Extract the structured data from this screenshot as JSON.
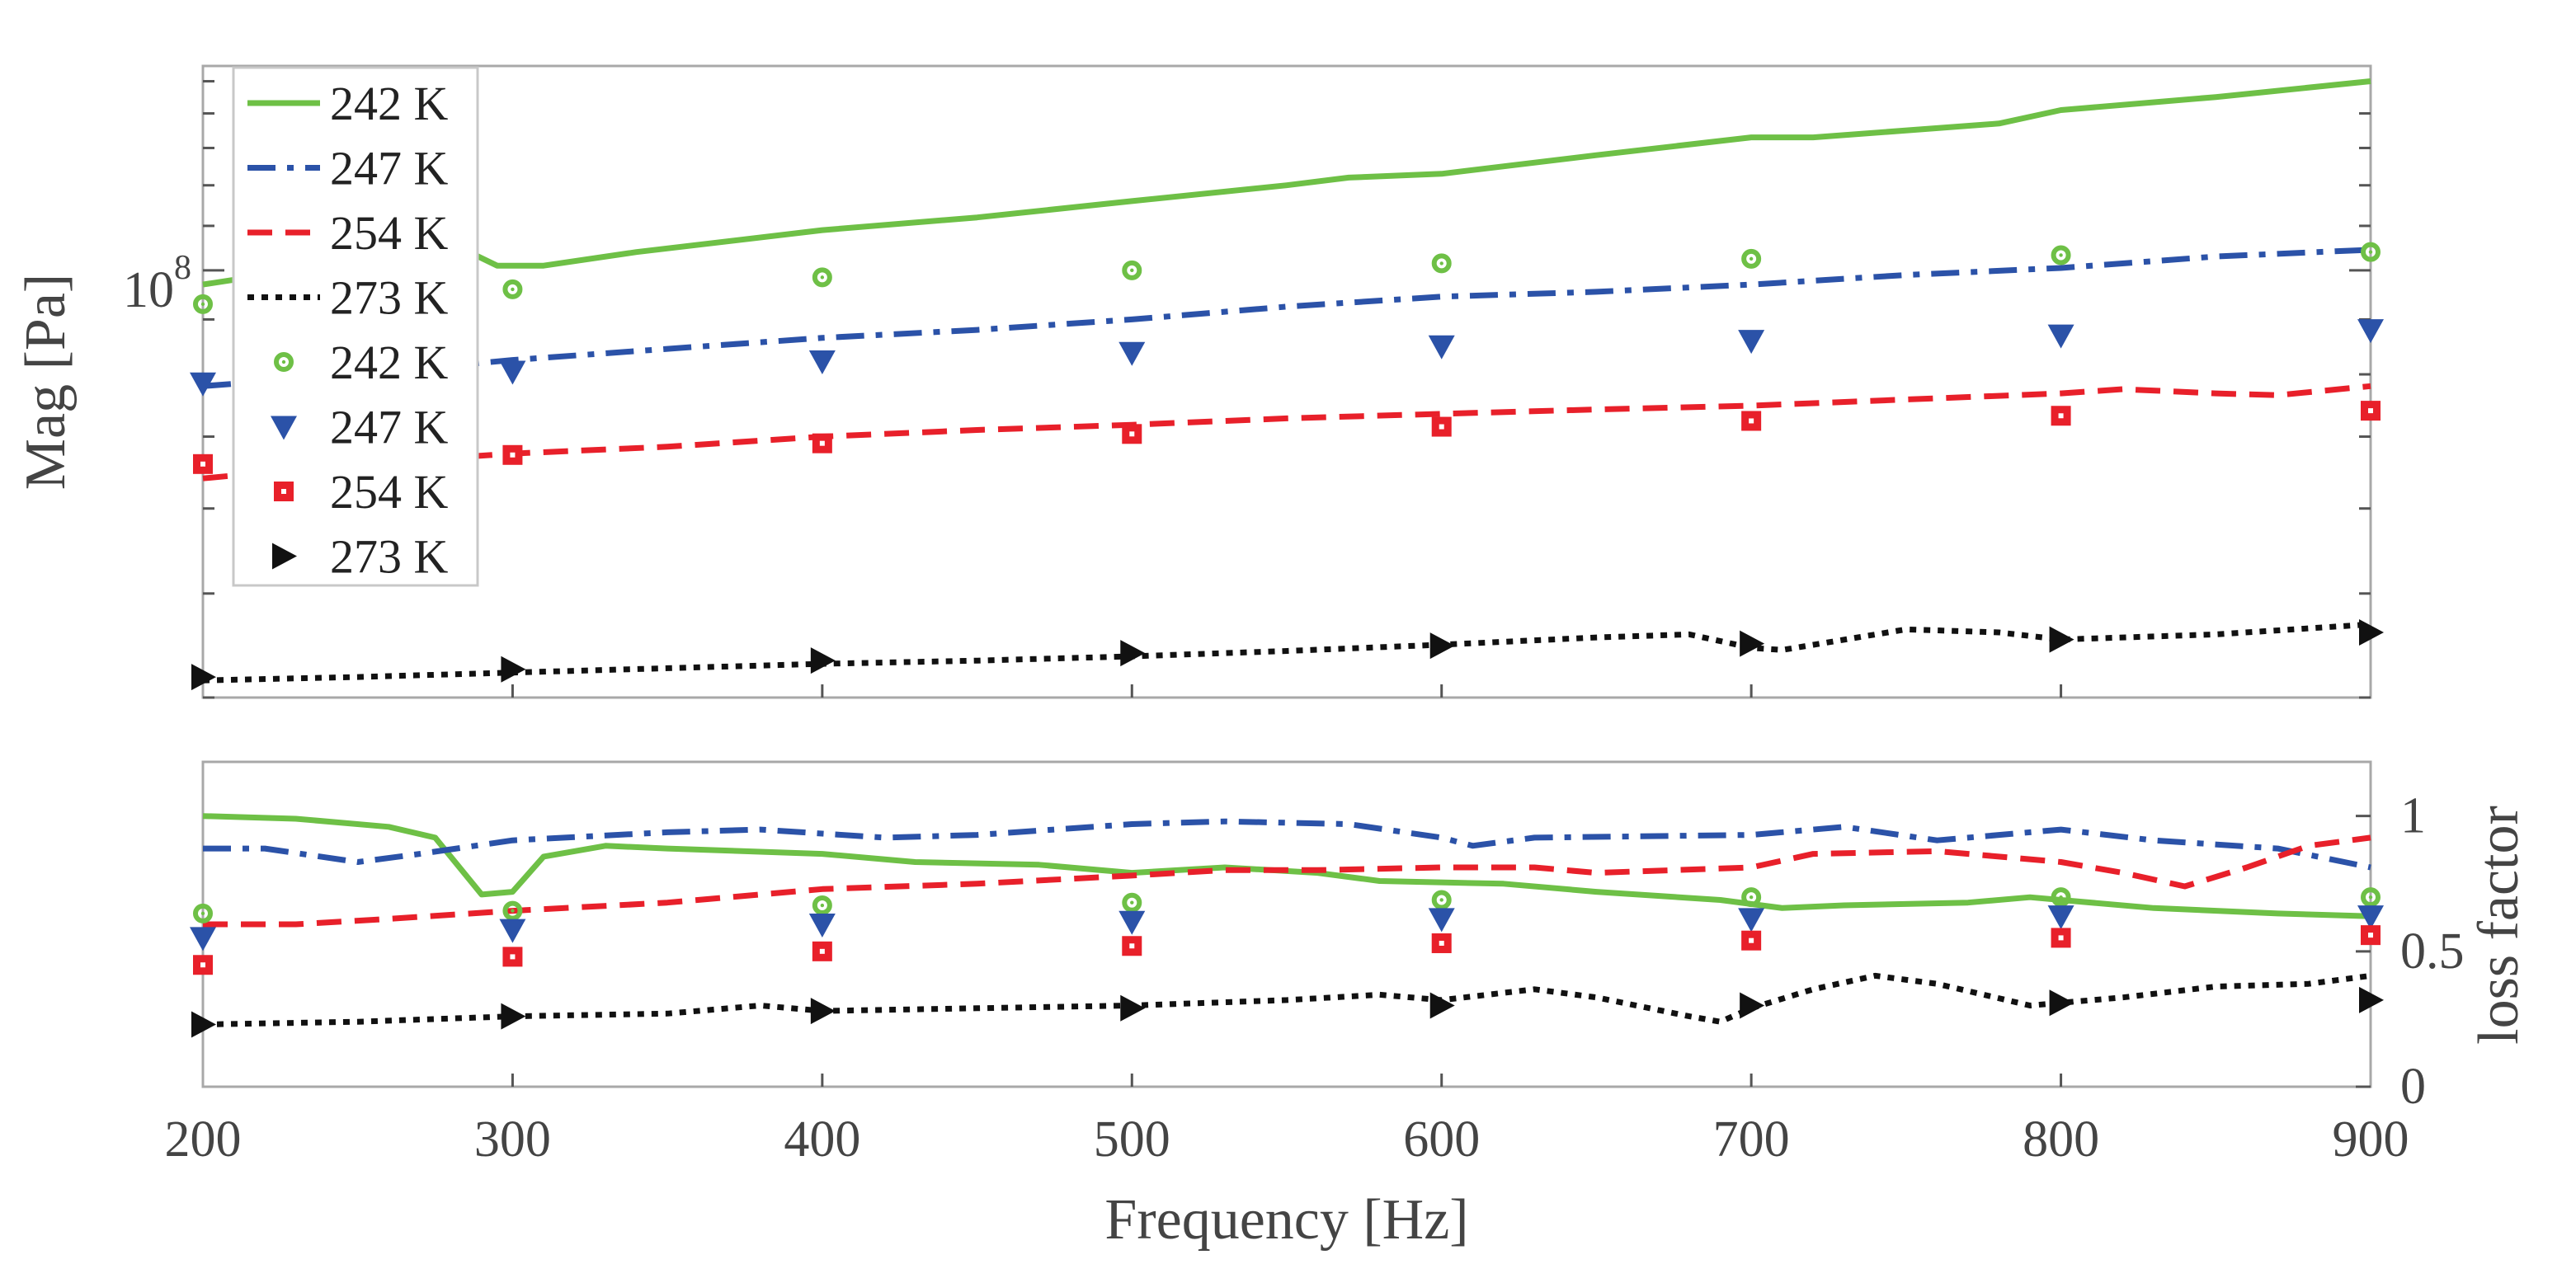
{
  "chart_data": [
    {
      "type": "line",
      "panel": "magnitude",
      "ylabel": "Mag [Pa]",
      "xlabel": "",
      "yscale": "log",
      "ylim": [
        40000000,
        155000000
      ],
      "xlim": [
        200,
        900
      ],
      "ytick_labels": [
        "10",
        "8"
      ],
      "ytick_value": 100000000,
      "grid": false,
      "legend_position": "top-left",
      "legend": [
        {
          "label": "242 K",
          "kind": "line",
          "style": "solid",
          "color": "#6ec046"
        },
        {
          "label": "247 K",
          "kind": "line",
          "style": "dashdot",
          "color": "#2b52a8"
        },
        {
          "label": "254 K",
          "kind": "line",
          "style": "dashed",
          "color": "#e8202a"
        },
        {
          "label": "273 K",
          "kind": "line",
          "style": "dotted",
          "color": "#111111"
        },
        {
          "label": "242 K",
          "kind": "marker",
          "marker": "circle",
          "color": "#6ec046"
        },
        {
          "label": "247 K",
          "kind": "marker",
          "marker": "triangle-down",
          "color": "#2b52a8"
        },
        {
          "label": "254 K",
          "kind": "marker",
          "marker": "square",
          "color": "#e8202a"
        },
        {
          "label": "273 K",
          "kind": "marker",
          "marker": "triangle-right",
          "color": "#111111"
        }
      ],
      "series": [
        {
          "name": "242 K",
          "kind": "line",
          "style": "solid",
          "color": "#6ec046",
          "x": [
            200,
            230,
            260,
            280,
            295,
            310,
            340,
            400,
            450,
            500,
            550,
            570,
            600,
            650,
            700,
            720,
            780,
            800,
            850,
            900
          ],
          "values": [
            97000000,
            100000000,
            104000000,
            106000000,
            101000000,
            101000000,
            104000000,
            109000000,
            112000000,
            116000000,
            120000000,
            122000000,
            123000000,
            128000000,
            133000000,
            133000000,
            137000000,
            141000000,
            145000000,
            150000000
          ]
        },
        {
          "name": "247 K",
          "kind": "line",
          "style": "dashdot",
          "color": "#2b52a8",
          "x": [
            200,
            250,
            300,
            350,
            400,
            450,
            500,
            550,
            600,
            650,
            700,
            750,
            800,
            850,
            900
          ],
          "values": [
            78000000,
            80000000,
            82500000,
            84500000,
            86500000,
            88000000,
            90000000,
            92500000,
            94500000,
            95500000,
            97000000,
            99000000,
            100500000,
            103000000,
            104500000
          ]
        },
        {
          "name": "254 K",
          "kind": "line",
          "style": "dashed",
          "color": "#e8202a",
          "x": [
            200,
            250,
            300,
            350,
            400,
            450,
            500,
            550,
            600,
            650,
            700,
            750,
            800,
            820,
            850,
            870,
            900
          ],
          "values": [
            64000000,
            66000000,
            67500000,
            68500000,
            70000000,
            71000000,
            71800000,
            72800000,
            73500000,
            74200000,
            74800000,
            75800000,
            76800000,
            77500000,
            76800000,
            76500000,
            78000000
          ]
        },
        {
          "name": "273 K",
          "kind": "line",
          "style": "dotted",
          "color": "#111111",
          "x": [
            200,
            250,
            300,
            350,
            400,
            450,
            500,
            550,
            600,
            650,
            680,
            700,
            710,
            750,
            780,
            800,
            850,
            900
          ],
          "values": [
            41500000,
            41800000,
            42200000,
            42600000,
            43000000,
            43300000,
            43700000,
            44200000,
            44800000,
            45500000,
            45800000,
            44500000,
            44300000,
            46300000,
            46000000,
            45300000,
            45800000,
            46800000
          ]
        },
        {
          "name": "242 K",
          "kind": "marker",
          "marker": "circle",
          "color": "#6ec046",
          "x": [
            200,
            300,
            400,
            500,
            600,
            700,
            800,
            900
          ],
          "values": [
            93000000,
            96000000,
            98500000,
            100000000,
            101500000,
            102500000,
            103300000,
            104000000
          ]
        },
        {
          "name": "247 K",
          "kind": "marker",
          "marker": "triangle-down",
          "color": "#2b52a8",
          "x": [
            200,
            300,
            400,
            500,
            600,
            700,
            800,
            900
          ],
          "values": [
            78500000,
            80500000,
            82300000,
            83800000,
            85000000,
            86000000,
            87000000,
            88000000
          ]
        },
        {
          "name": "254 K",
          "kind": "marker",
          "marker": "square",
          "color": "#e8202a",
          "x": [
            200,
            300,
            400,
            500,
            600,
            700,
            800,
            900
          ],
          "values": [
            66000000,
            67300000,
            69000000,
            70400000,
            71500000,
            72400000,
            73200000,
            74000000
          ]
        },
        {
          "name": "273 K",
          "kind": "marker",
          "marker": "triangle-right",
          "color": "#111111",
          "x": [
            200,
            300,
            400,
            500,
            600,
            700,
            800,
            900
          ],
          "values": [
            41800000,
            42500000,
            43300000,
            44000000,
            44700000,
            44900000,
            45300000,
            46000000
          ]
        }
      ]
    },
    {
      "type": "line",
      "panel": "loss-factor",
      "ylabel": "loss factor",
      "xlabel": "Frequency [Hz]",
      "yaxis_side": "right",
      "ylim": [
        0,
        1.2
      ],
      "xlim": [
        200,
        900
      ],
      "xticks": [
        200,
        300,
        400,
        500,
        600,
        700,
        800,
        900
      ],
      "xtick_labels": [
        "200",
        "300",
        "400",
        "500",
        "600",
        "700",
        "800",
        "900"
      ],
      "yticks": [
        0,
        0.5,
        1
      ],
      "ytick_labels": [
        "0",
        "0.5",
        "1"
      ],
      "grid": false,
      "series": [
        {
          "name": "242 K",
          "kind": "line",
          "style": "solid",
          "color": "#6ec046",
          "x": [
            200,
            230,
            260,
            275,
            290,
            300,
            310,
            330,
            350,
            400,
            430,
            470,
            500,
            530,
            560,
            580,
            620,
            650,
            690,
            710,
            730,
            770,
            790,
            800,
            830,
            870,
            900
          ],
          "values": [
            1.0,
            0.99,
            0.96,
            0.92,
            0.71,
            0.72,
            0.85,
            0.89,
            0.88,
            0.86,
            0.83,
            0.82,
            0.79,
            0.81,
            0.79,
            0.76,
            0.75,
            0.72,
            0.69,
            0.66,
            0.67,
            0.68,
            0.7,
            0.69,
            0.66,
            0.64,
            0.63
          ]
        },
        {
          "name": "247 K",
          "kind": "line",
          "style": "dashdot",
          "color": "#2b52a8",
          "x": [
            200,
            220,
            250,
            270,
            300,
            350,
            380,
            420,
            450,
            500,
            530,
            570,
            600,
            610,
            630,
            700,
            730,
            760,
            800,
            830,
            870,
            900
          ],
          "values": [
            0.88,
            0.88,
            0.83,
            0.86,
            0.91,
            0.94,
            0.95,
            0.92,
            0.93,
            0.97,
            0.98,
            0.97,
            0.92,
            0.89,
            0.92,
            0.93,
            0.96,
            0.91,
            0.95,
            0.91,
            0.88,
            0.81
          ]
        },
        {
          "name": "254 K",
          "kind": "line",
          "style": "dashed",
          "color": "#e8202a",
          "x": [
            200,
            230,
            260,
            300,
            350,
            400,
            450,
            500,
            530,
            560,
            600,
            630,
            650,
            700,
            720,
            760,
            800,
            820,
            840,
            860,
            880,
            900
          ],
          "values": [
            0.6,
            0.6,
            0.62,
            0.65,
            0.68,
            0.73,
            0.75,
            0.78,
            0.8,
            0.8,
            0.81,
            0.81,
            0.79,
            0.81,
            0.86,
            0.87,
            0.83,
            0.79,
            0.74,
            0.81,
            0.89,
            0.92
          ]
        },
        {
          "name": "273 K",
          "kind": "line",
          "style": "dotted",
          "color": "#111111",
          "x": [
            200,
            250,
            300,
            350,
            380,
            400,
            450,
            500,
            550,
            580,
            600,
            630,
            650,
            680,
            690,
            700,
            720,
            740,
            760,
            790,
            820,
            850,
            880,
            900
          ],
          "values": [
            0.23,
            0.24,
            0.26,
            0.27,
            0.3,
            0.28,
            0.29,
            0.3,
            0.32,
            0.34,
            0.32,
            0.36,
            0.33,
            0.26,
            0.24,
            0.29,
            0.36,
            0.41,
            0.38,
            0.3,
            0.33,
            0.37,
            0.38,
            0.41
          ]
        },
        {
          "name": "242 K",
          "kind": "marker",
          "marker": "circle",
          "color": "#6ec046",
          "x": [
            200,
            300,
            400,
            500,
            600,
            700,
            800,
            900
          ],
          "values": [
            0.64,
            0.65,
            0.67,
            0.68,
            0.69,
            0.7,
            0.7,
            0.7
          ]
        },
        {
          "name": "247 K",
          "kind": "marker",
          "marker": "triangle-down",
          "color": "#2b52a8",
          "x": [
            200,
            300,
            400,
            500,
            600,
            700,
            800,
            900
          ],
          "values": [
            0.55,
            0.58,
            0.6,
            0.61,
            0.62,
            0.62,
            0.63,
            0.63
          ]
        },
        {
          "name": "254 K",
          "kind": "marker",
          "marker": "square",
          "color": "#e8202a",
          "x": [
            200,
            300,
            400,
            500,
            600,
            700,
            800,
            900
          ],
          "values": [
            0.45,
            0.48,
            0.5,
            0.52,
            0.53,
            0.54,
            0.55,
            0.56
          ]
        },
        {
          "name": "273 K",
          "kind": "marker",
          "marker": "triangle-right",
          "color": "#111111",
          "x": [
            200,
            300,
            400,
            500,
            600,
            700,
            800,
            900
          ],
          "values": [
            0.23,
            0.26,
            0.28,
            0.29,
            0.3,
            0.3,
            0.31,
            0.32
          ]
        }
      ]
    }
  ]
}
